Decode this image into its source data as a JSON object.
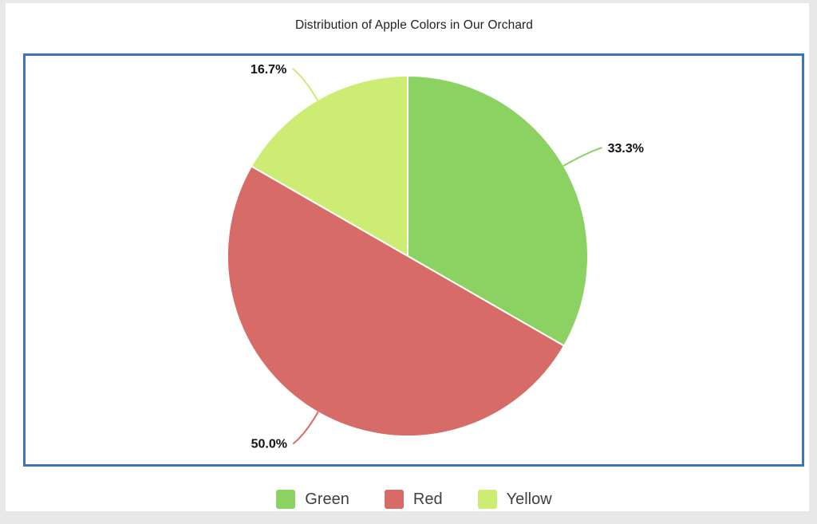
{
  "chart_data": {
    "type": "pie",
    "title": "Distribution of Apple Colors in Our Orchard",
    "start_angle_deg": 0,
    "direction": "clockwise",
    "legend_position": "bottom",
    "slices": [
      {
        "label": "Green",
        "value": 33.3,
        "percent_label": "33.3%",
        "color": "#8bd263"
      },
      {
        "label": "Red",
        "value": 50.0,
        "percent_label": "50.0%",
        "color": "#d66b67"
      },
      {
        "label": "Yellow",
        "value": 16.7,
        "percent_label": "16.7%",
        "color": "#cdec74"
      }
    ]
  },
  "colors": {
    "plot_border": "#3e73b7",
    "page_background": "#ffffff",
    "outer_background": "#e8e8e8",
    "slice_divider": "#ffffff",
    "percent_label_text": "#111111",
    "legend_text": "#3f3f3f"
  }
}
